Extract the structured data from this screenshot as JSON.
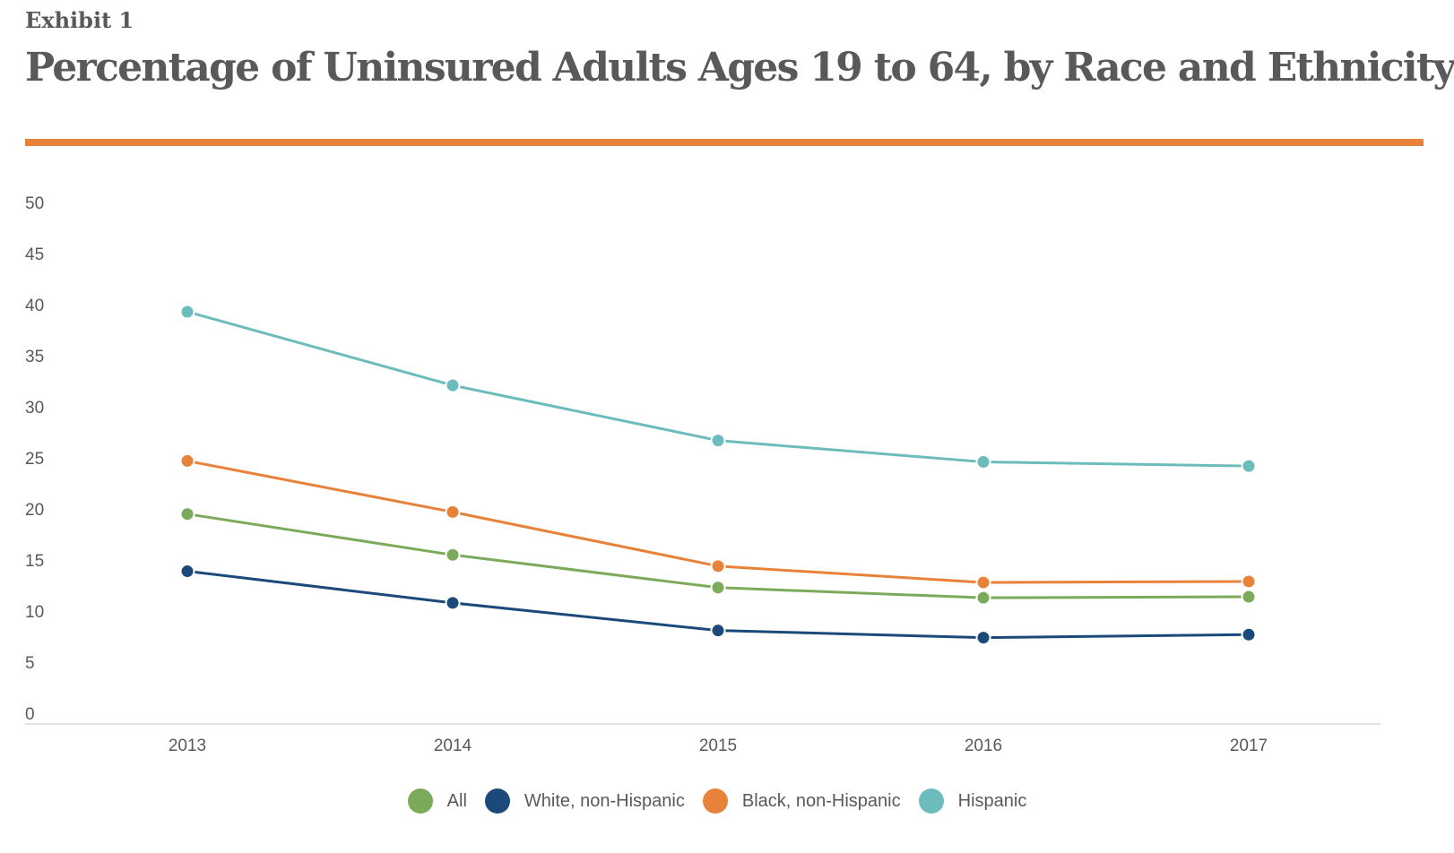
{
  "header": {
    "exhibit": "Exhibit 1",
    "title": "Percentage of Uninsured Adults Ages 19 to 64, by Race and Ethnicity"
  },
  "colors": {
    "accent_rule": "#e8823a",
    "text": "#58595b",
    "axis": "#d9d9d9"
  },
  "chart_data": {
    "type": "line",
    "title": "Percentage of Uninsured Adults Ages 19 to 64, by Race and Ethnicity",
    "xlabel": "",
    "ylabel": "",
    "x": [
      "2013",
      "2014",
      "2015",
      "2016",
      "2017"
    ],
    "ylim": [
      0,
      50
    ],
    "yticks": [
      "0",
      "5",
      "10",
      "15",
      "20",
      "25",
      "30",
      "35",
      "40",
      "45",
      "50"
    ],
    "grid": false,
    "legend_position": "bottom",
    "series": [
      {
        "name": "All",
        "color": "#7bab5a",
        "values": [
          19.5,
          15.5,
          12.3,
          11.3,
          11.4
        ]
      },
      {
        "name": "White, non-Hispanic",
        "color": "#1b4a7a",
        "values": [
          13.9,
          10.8,
          8.1,
          7.4,
          7.7
        ]
      },
      {
        "name": "Black, non-Hispanic",
        "color": "#e8823a",
        "values": [
          24.7,
          19.7,
          14.4,
          12.8,
          12.9
        ]
      },
      {
        "name": "Hispanic",
        "color": "#6dbcbc",
        "values": [
          39.3,
          32.1,
          26.7,
          24.6,
          24.2
        ]
      }
    ]
  }
}
